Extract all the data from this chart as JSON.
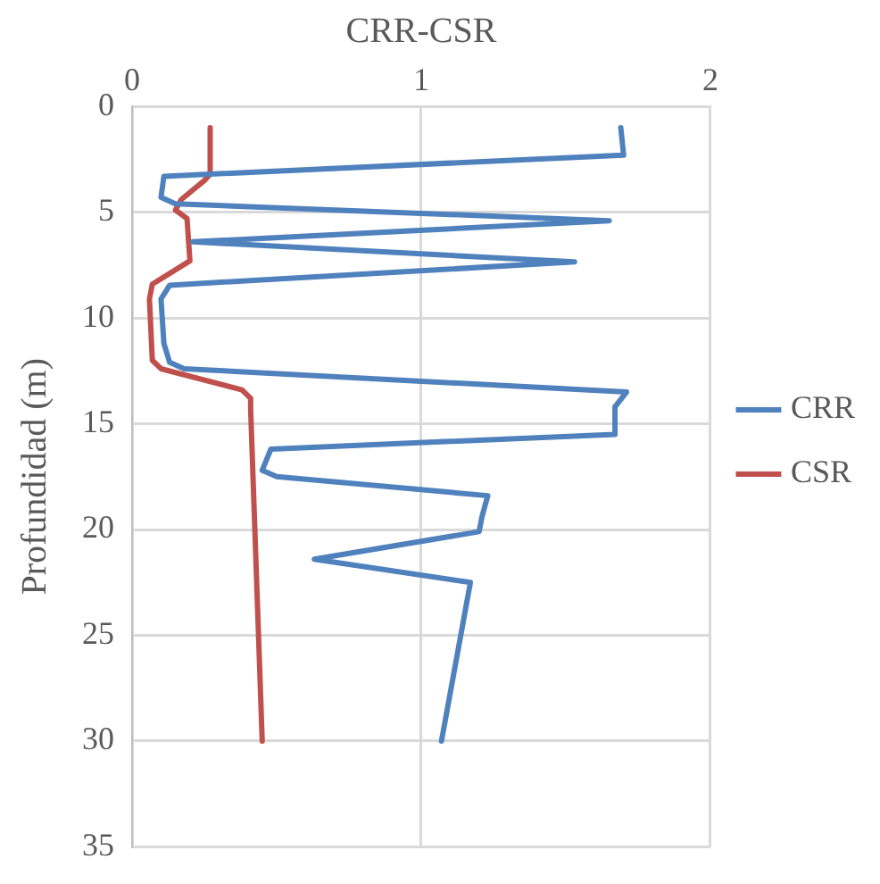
{
  "chart_data": {
    "type": "line",
    "xlabel": "CRR-CSR",
    "ylabel": "Profundidad (m)",
    "xlim": [
      0,
      2
    ],
    "xticks": [
      0,
      1,
      2
    ],
    "ylim": [
      35,
      0
    ],
    "yticks": [
      0,
      5,
      10,
      15,
      20,
      25,
      30,
      35
    ],
    "grid": true,
    "legend": "right",
    "marker": "none",
    "line_style": "solid",
    "series": [
      {
        "name": "CRR",
        "color": "#4f81bd",
        "x": [
          1.69,
          1.7,
          0.11,
          0.1,
          0.15,
          1.65,
          0.21,
          1.53,
          0.13,
          0.1,
          0.11,
          0.13,
          0.18,
          1.71,
          1.67,
          1.67,
          0.48,
          0.45,
          0.5,
          1.23,
          1.21,
          1.2,
          0.63,
          1.17,
          1.07
        ],
        "values": [
          1.0,
          2.3,
          3.3,
          4.3,
          4.6,
          5.4,
          6.4,
          7.35,
          8.45,
          9.1,
          11.2,
          12.1,
          12.4,
          13.5,
          14.2,
          15.5,
          16.2,
          17.2,
          17.5,
          18.4,
          19.4,
          20.1,
          21.4,
          22.5,
          30.0
        ]
      },
      {
        "name": "CSR",
        "color": "#c0504d",
        "x": [
          0.27,
          0.27,
          0.25,
          0.17,
          0.15,
          0.19,
          0.2,
          0.07,
          0.06,
          0.07,
          0.1,
          0.38,
          0.41,
          0.41,
          0.45
        ],
        "values": [
          1.0,
          3.2,
          3.5,
          4.4,
          4.9,
          5.3,
          7.3,
          8.4,
          9.1,
          12.0,
          12.4,
          13.4,
          13.8,
          14.3,
          30.0
        ]
      }
    ]
  }
}
